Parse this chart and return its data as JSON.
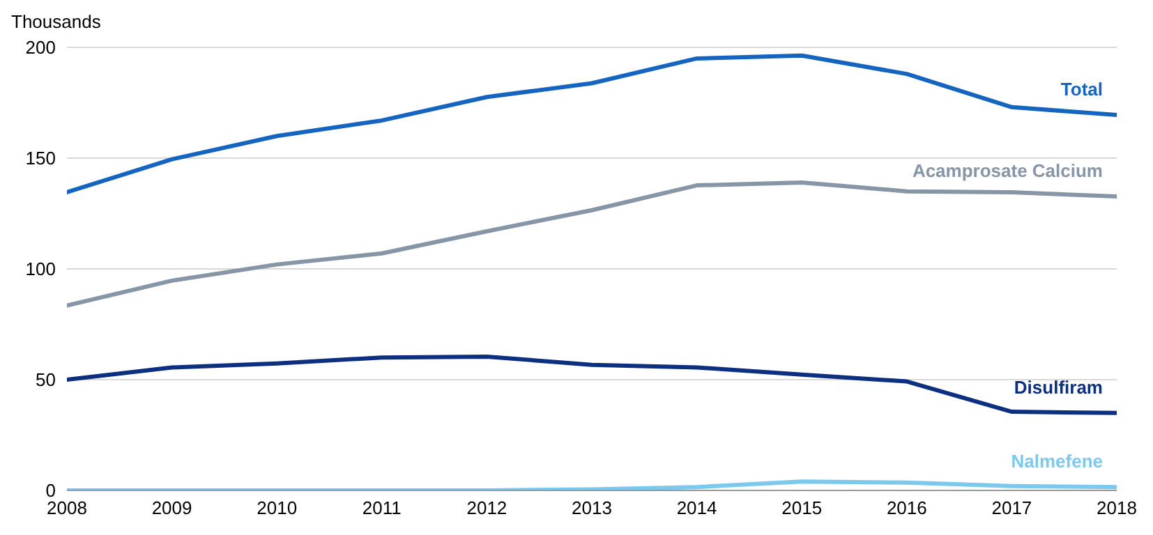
{
  "chart_data": {
    "type": "line",
    "ylabel": "Thousands",
    "x": [
      2008,
      2009,
      2010,
      2011,
      2012,
      2013,
      2014,
      2015,
      2016,
      2017,
      2018
    ],
    "xlim": [
      2008,
      2018
    ],
    "xticks": [
      2008,
      2009,
      2010,
      2011,
      2012,
      2013,
      2014,
      2015,
      2016,
      2017,
      2018
    ],
    "ylim": [
      0,
      200
    ],
    "yticks": [
      0,
      50,
      100,
      150,
      200
    ],
    "grid": "y",
    "marker": "none",
    "line_style": "solid",
    "series": [
      {
        "name": "Total",
        "color": "#1565c0",
        "values": [
          134.6,
          149.5,
          160,
          167,
          177.6,
          183.8,
          195,
          196.3,
          188,
          173,
          169.5
        ]
      },
      {
        "name": "Acamprosate Calcium",
        "color": "#8696a6",
        "values": [
          83.5,
          94.7,
          102,
          107,
          117,
          126.5,
          137.7,
          139,
          135,
          134.6,
          132.7
        ]
      },
      {
        "name": "Disulfiram",
        "color": "#0d2f7f",
        "values": [
          50,
          55.5,
          57.3,
          60,
          60.4,
          56.7,
          55.5,
          52.3,
          49.2,
          35.5,
          35
        ]
      },
      {
        "name": "Nalmefene",
        "color": "#7dc9ee",
        "values": [
          0,
          0,
          0,
          0,
          0,
          0.5,
          1.5,
          4,
          3.5,
          2,
          1.5
        ]
      }
    ]
  }
}
